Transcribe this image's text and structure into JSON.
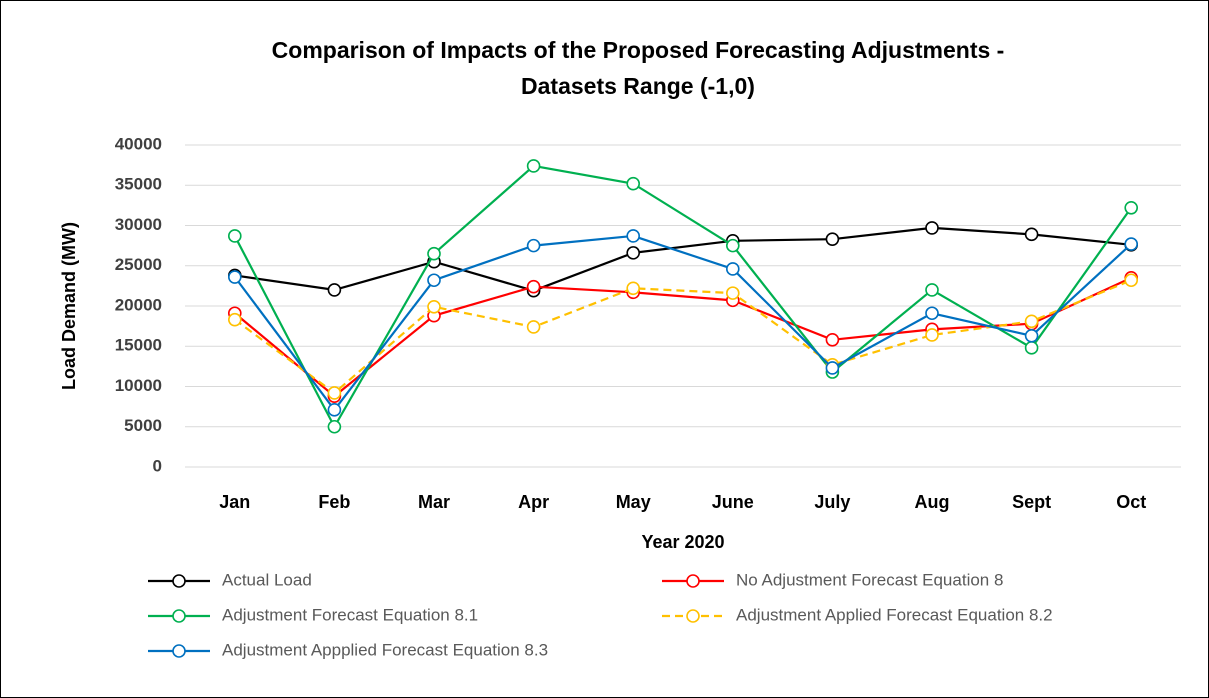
{
  "chart_data": {
    "type": "line",
    "title": [
      "Comparison of Impacts of the Proposed Forecasting Adjustments -",
      "Datasets Range (-1,0)"
    ],
    "x_label": "Year 2020",
    "y_label": "Load Demand  (MW)",
    "categories": [
      "Jan",
      "Feb",
      "Mar",
      "Apr",
      "May",
      "June",
      "July",
      "Aug",
      "Sept",
      "Oct"
    ],
    "ylim": [
      0,
      40000
    ],
    "yticks": [
      0,
      5000,
      10000,
      15000,
      20000,
      25000,
      30000,
      35000,
      40000
    ],
    "grid": true,
    "legend": "bottom",
    "series": [
      {
        "name": "Actual Load",
        "color": "#000000",
        "dashed": false,
        "values": [
          23800,
          22000,
          25500,
          21900,
          26600,
          28100,
          28300,
          29700,
          28900,
          27600
        ]
      },
      {
        "name": "No Adjustment Forecast Equation 8",
        "color": "#ff0000",
        "dashed": false,
        "values": [
          19100,
          8800,
          18800,
          22400,
          21700,
          20700,
          15800,
          17100,
          17800,
          23500
        ]
      },
      {
        "name": "Adjustment Forecast Equation 8.1",
        "color": "#00b050",
        "dashed": false,
        "values": [
          28700,
          5000,
          26500,
          37400,
          35200,
          27500,
          11800,
          22000,
          14800,
          32200
        ]
      },
      {
        "name": "Adjustment Applied Forecast Equation 8.2",
        "color": "#ffc000",
        "dashed": true,
        "values": [
          18300,
          9200,
          19900,
          17400,
          22200,
          21600,
          12700,
          16400,
          18100,
          23200
        ]
      },
      {
        "name": "Adjustment Appplied Forecast Equation 8.3",
        "color": "#0070c0",
        "dashed": false,
        "values": [
          23600,
          7100,
          23200,
          27500,
          28700,
          24600,
          12300,
          19100,
          16300,
          27700
        ]
      }
    ]
  }
}
